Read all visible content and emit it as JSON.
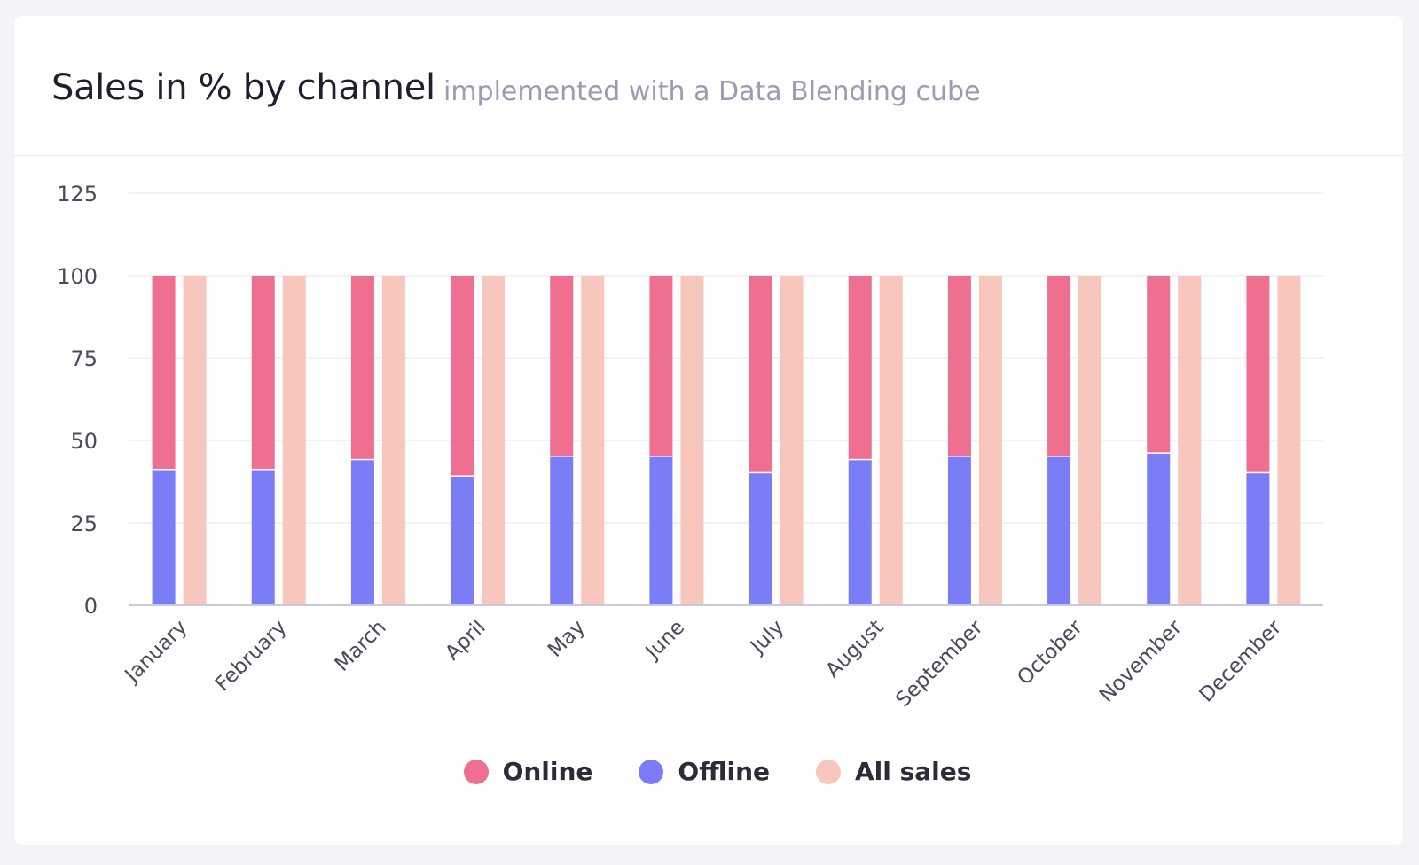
{
  "card": {
    "title": "Sales in % by channel",
    "subtitle": "implemented with a Data Blending cube"
  },
  "chart_data": {
    "type": "bar",
    "categories": [
      "January",
      "February",
      "March",
      "April",
      "May",
      "June",
      "July",
      "August",
      "September",
      "October",
      "November",
      "December"
    ],
    "series": [
      {
        "name": "Online",
        "stack": "channel",
        "color": "#ef6f91",
        "values": [
          59,
          59,
          56,
          61,
          55,
          55,
          60,
          56,
          55,
          55,
          54,
          60
        ]
      },
      {
        "name": "Offline",
        "stack": "channel",
        "color": "#7a7df6",
        "values": [
          41,
          41,
          44,
          39,
          45,
          45,
          40,
          44,
          45,
          45,
          46,
          40
        ]
      },
      {
        "name": "All sales",
        "stack": "all",
        "color": "#f7c6bc",
        "values": [
          100,
          100,
          100,
          100,
          100,
          100,
          100,
          100,
          100,
          100,
          100,
          100
        ]
      }
    ],
    "ylim": [
      0,
      125
    ],
    "yticks": [
      0,
      25,
      50,
      75,
      100,
      125
    ],
    "grid": true,
    "legend": "bottom-center",
    "title": "",
    "xlabel": "",
    "ylabel": ""
  }
}
